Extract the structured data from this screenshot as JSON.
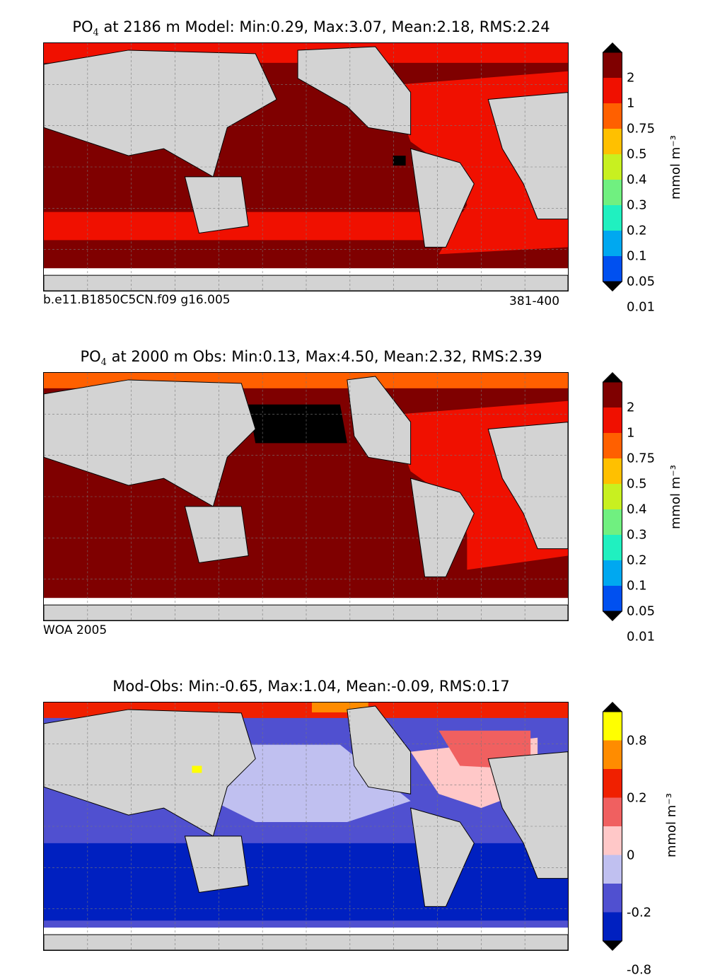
{
  "chart_data": [
    {
      "type": "heatmap",
      "title_prefix": "PO",
      "title_sub": "4",
      "title": "at 2186 m Model: Min:0.29, Max:3.07, Mean:2.18, RMS:2.24",
      "footer_left": "b.e11.B1850C5CN.f09 g16.005",
      "footer_right": "381-400",
      "colorbar_labels": [
        "2",
        "1",
        "0.75",
        "0.5",
        "0.4",
        "0.3",
        "0.2",
        "0.1",
        "0.05",
        "0.01"
      ],
      "colorbar_colors": [
        "#7f0000",
        "#f01000",
        "#ff6000",
        "#ffc000",
        "#c8f020",
        "#70f080",
        "#20f0c0",
        "#00a8f0",
        "#0050f0",
        "#0000d0",
        "#00007f"
      ],
      "unit": "mmol m⁻³"
    },
    {
      "type": "heatmap",
      "title_prefix": "PO",
      "title_sub": "4",
      "title": "at 2000 m Obs: Min:0.13, Max:4.50, Mean:2.32, RMS:2.39",
      "footer_left": "WOA 2005",
      "colorbar_labels": [
        "2",
        "1",
        "0.75",
        "0.5",
        "0.4",
        "0.3",
        "0.2",
        "0.1",
        "0.05",
        "0.01"
      ],
      "colorbar_colors": [
        "#7f0000",
        "#f01000",
        "#ff6000",
        "#ffc000",
        "#c8f020",
        "#70f080",
        "#20f0c0",
        "#00a8f0",
        "#0050f0",
        "#0000d0",
        "#00007f"
      ],
      "unit": "mmol m⁻³"
    },
    {
      "type": "heatmap",
      "title": "Mod-Obs: Min:-0.65, Max:1.04, Mean:-0.09, RMS:0.17",
      "colorbar_labels": [
        "0.8",
        "0.2",
        "0",
        "-0.2",
        "-0.8"
      ],
      "colorbar_colors": [
        "#ffff00",
        "#ff8c00",
        "#f02000",
        "#f06060",
        "#ffc8c8",
        "#c0c0f0",
        "#5050d0",
        "#0020c0",
        "#0090e0",
        "#00ffff"
      ],
      "unit": "mmol m⁻³"
    }
  ],
  "colors": {
    "land": "#d3d3d3",
    "nodata": "#ffffff",
    "grid": "#777777"
  }
}
